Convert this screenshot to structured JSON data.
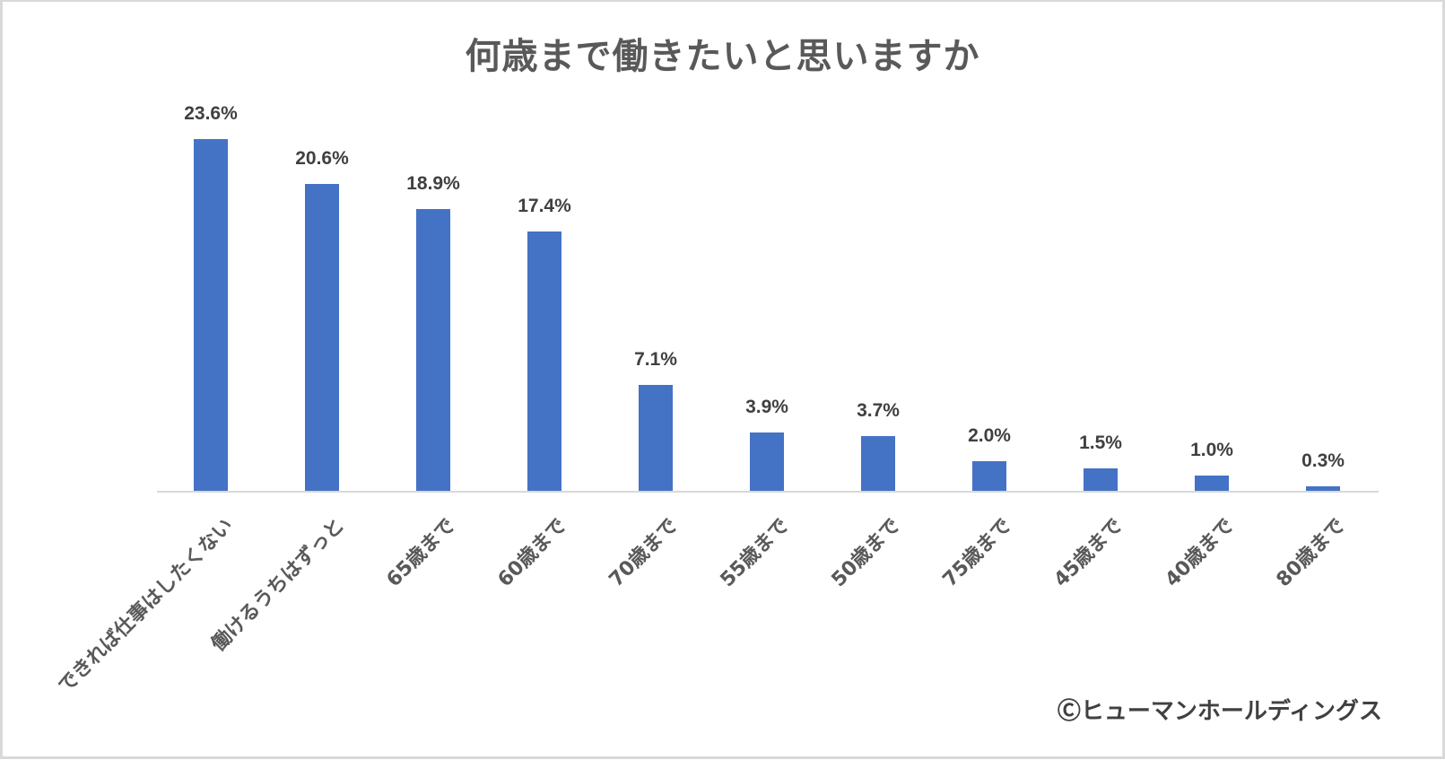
{
  "chart_data": {
    "type": "bar",
    "title": "何歳まで働きたいと思いますか",
    "xlabel": "",
    "ylabel": "",
    "ylim": [
      0,
      25
    ],
    "grid": false,
    "legend": null,
    "categories": [
      "できれば仕事はしたくない",
      "働けるうちはずっと",
      "65歳まで",
      "60歳まで",
      "70歳まで",
      "55歳まで",
      "50歳まで",
      "75歳まで",
      "45歳まで",
      "40歳まで",
      "80歳まで"
    ],
    "values": [
      23.6,
      20.6,
      18.9,
      17.4,
      7.1,
      3.9,
      3.7,
      2.0,
      1.5,
      1.0,
      0.3
    ],
    "value_labels": [
      "23.6%",
      "20.6%",
      "18.9%",
      "17.4%",
      "7.1%",
      "3.9%",
      "3.7%",
      "2.0%",
      "1.5%",
      "1.0%",
      "0.3%"
    ],
    "bar_color": "#4472c4",
    "annotations": [
      "Ⓒヒューマンホールディングス"
    ]
  },
  "title": "何歳まで働きたいと思いますか",
  "credit": "Ⓒヒューマンホールディングス",
  "colors": {
    "bar": "#4472c4",
    "text": "#595959",
    "axis": "#d9d9d9"
  }
}
